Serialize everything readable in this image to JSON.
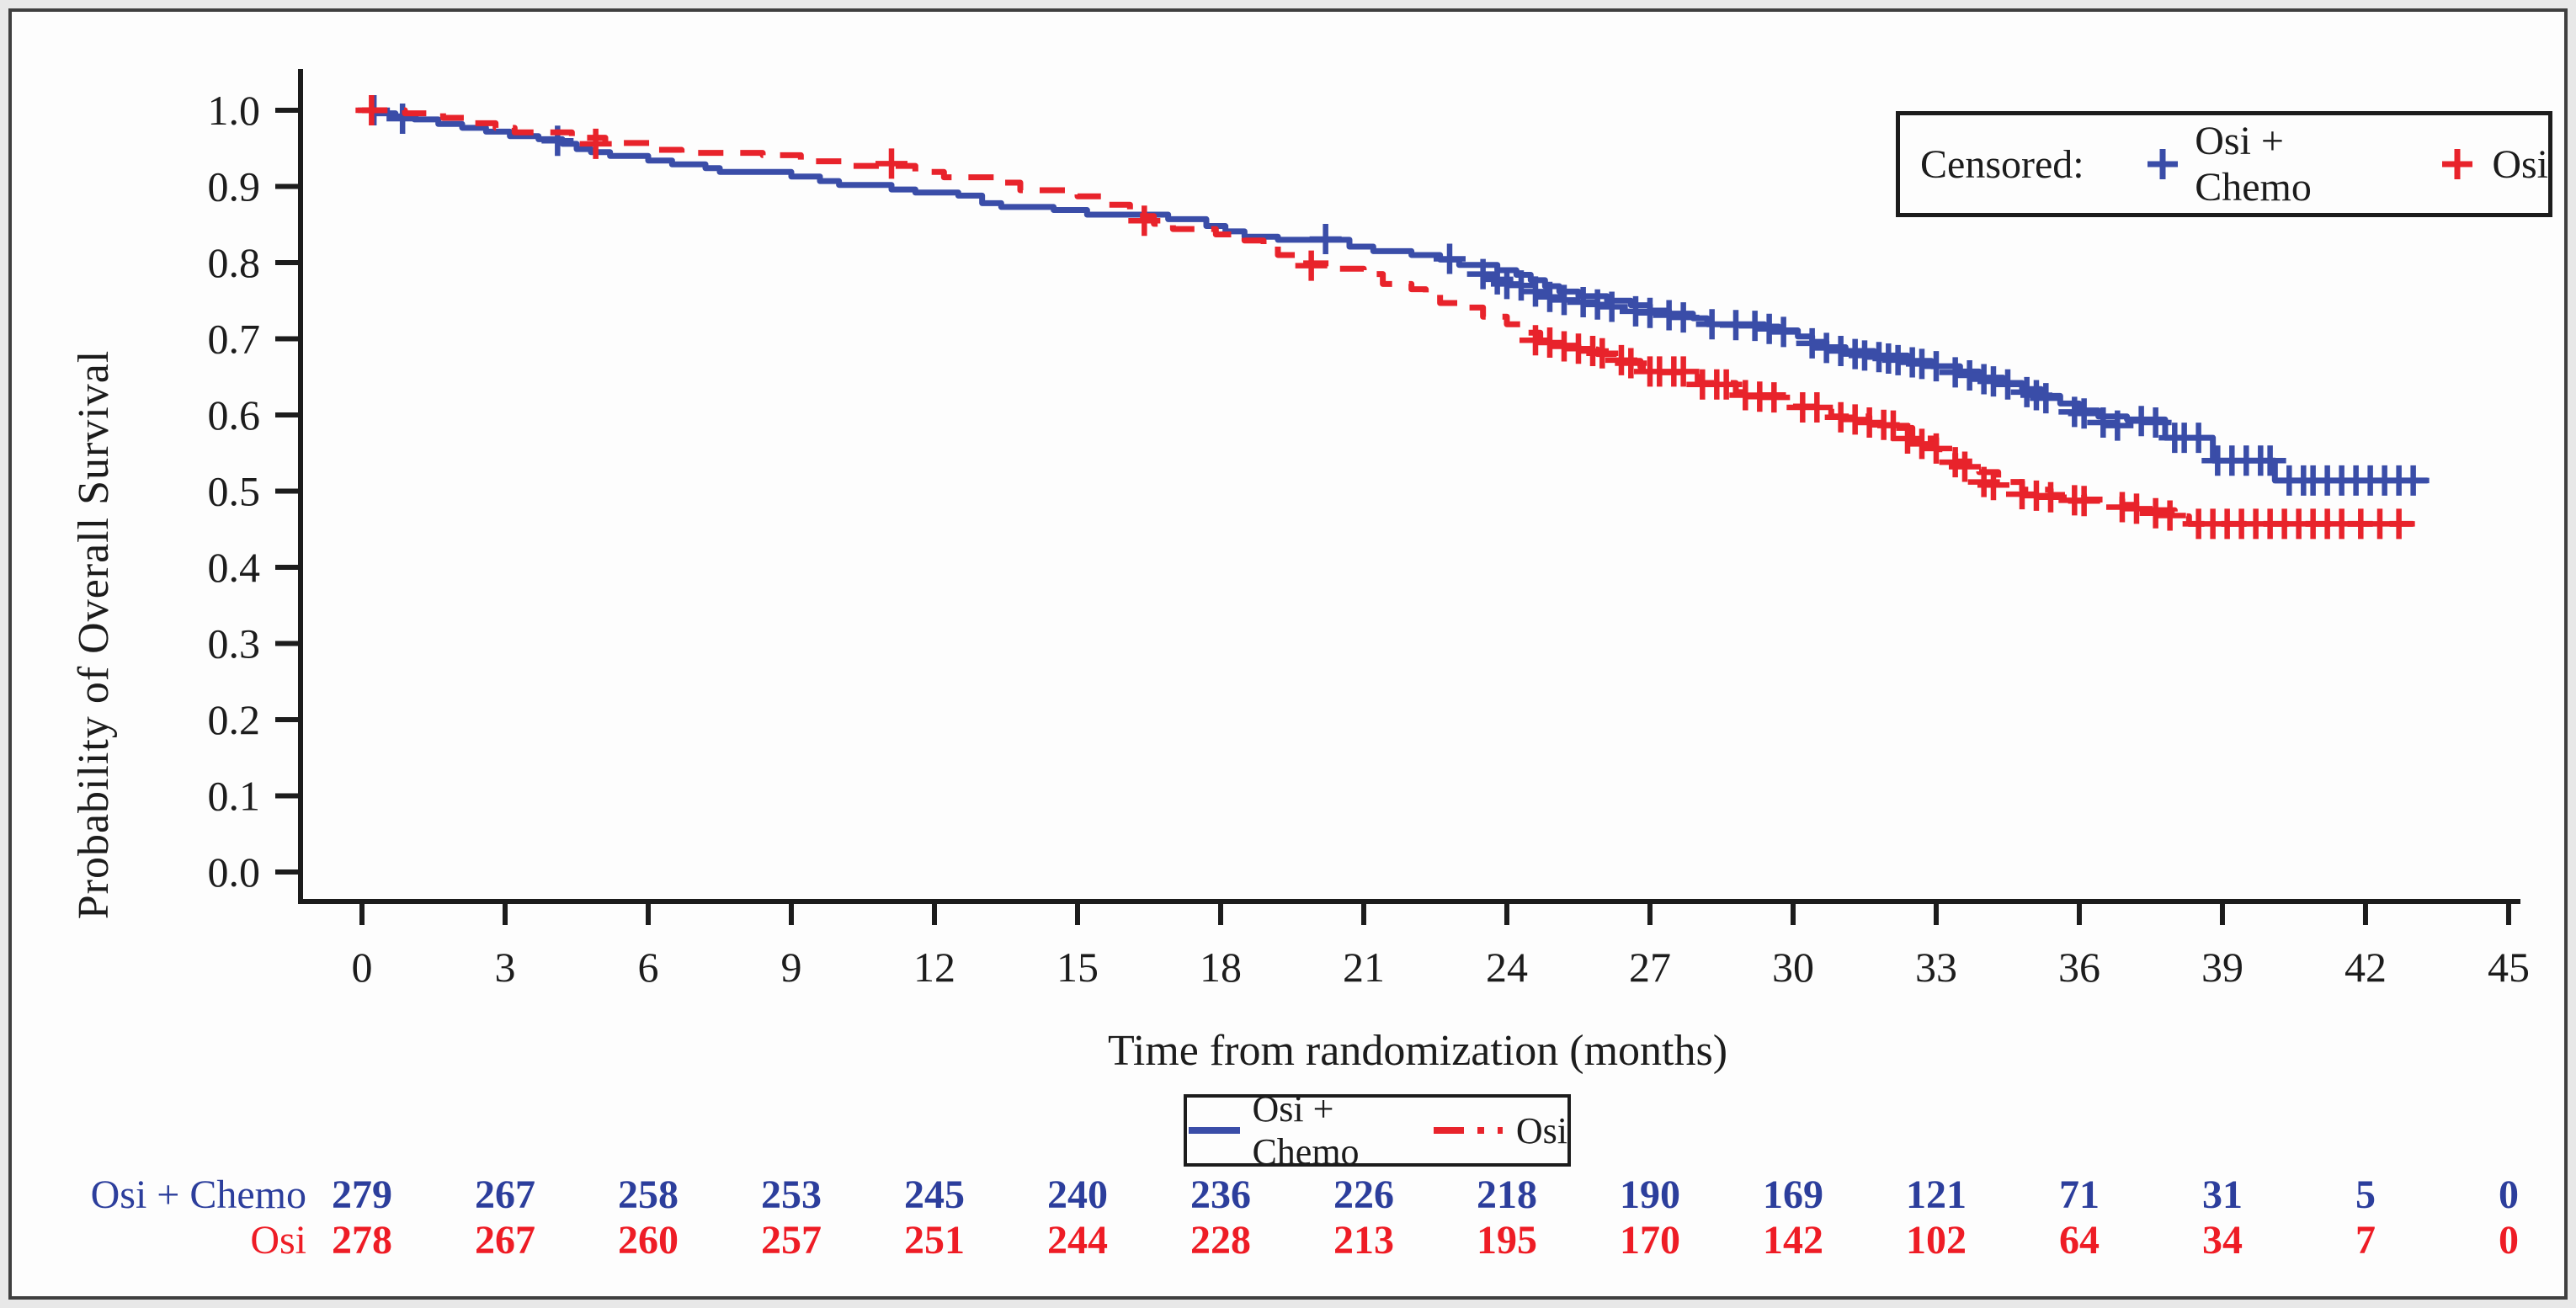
{
  "figure": {
    "background": "#fdfdfd",
    "border_color": "#3f3f3f"
  },
  "chart_data": {
    "type": "line",
    "subtype": "kaplan-meier-step",
    "title": "",
    "xlabel": "Time from randomization (months)",
    "ylabel": "Probability of Overall Survival",
    "xlim": [
      0,
      45
    ],
    "ylim": [
      0.0,
      1.0
    ],
    "grid": false,
    "x_ticks": [
      0,
      3,
      6,
      9,
      12,
      15,
      18,
      21,
      24,
      27,
      30,
      33,
      36,
      39,
      42,
      45
    ],
    "y_tick_labels": [
      "1.0",
      "0.9",
      "0.8",
      "0.7",
      "0.6",
      "0.5",
      "0.4",
      "0.3",
      "0.2",
      "0.1",
      "0.0"
    ],
    "axis_color": "#1c1c1c",
    "series": [
      {
        "name": "Osi + Chemo",
        "color": "#3a4da8",
        "style": "solid",
        "end_month": 43.3,
        "steps": [
          [
            0,
            1.0
          ],
          [
            0.3,
            0.996
          ],
          [
            0.7,
            0.992
          ],
          [
            1.1,
            0.988
          ],
          [
            1.6,
            0.982
          ],
          [
            2.1,
            0.977
          ],
          [
            2.6,
            0.972
          ],
          [
            3.1,
            0.966
          ],
          [
            3.7,
            0.962
          ],
          [
            4.2,
            0.956
          ],
          [
            4.5,
            0.949
          ],
          [
            4.8,
            0.945
          ],
          [
            5.2,
            0.94
          ],
          [
            6.0,
            0.934
          ],
          [
            6.5,
            0.929
          ],
          [
            7.2,
            0.924
          ],
          [
            7.5,
            0.919
          ],
          [
            9.0,
            0.913
          ],
          [
            9.6,
            0.907
          ],
          [
            10.0,
            0.902
          ],
          [
            11.1,
            0.896
          ],
          [
            11.6,
            0.892
          ],
          [
            12.5,
            0.888
          ],
          [
            13.0,
            0.878
          ],
          [
            13.4,
            0.873
          ],
          [
            14.5,
            0.869
          ],
          [
            15.2,
            0.863
          ],
          [
            16.9,
            0.857
          ],
          [
            17.7,
            0.848
          ],
          [
            18.1,
            0.841
          ],
          [
            18.5,
            0.834
          ],
          [
            19.2,
            0.83
          ],
          [
            20.7,
            0.821
          ],
          [
            21.2,
            0.815
          ],
          [
            22.0,
            0.81
          ],
          [
            22.6,
            0.804
          ],
          [
            23.0,
            0.797
          ],
          [
            23.8,
            0.79
          ],
          [
            24.2,
            0.784
          ],
          [
            24.5,
            0.777
          ],
          [
            24.8,
            0.769
          ],
          [
            25.1,
            0.762
          ],
          [
            25.5,
            0.756
          ],
          [
            26.1,
            0.75
          ],
          [
            26.6,
            0.744
          ],
          [
            27.0,
            0.737
          ],
          [
            27.4,
            0.733
          ],
          [
            27.9,
            0.727
          ],
          [
            28.2,
            0.719
          ],
          [
            29.4,
            0.716
          ],
          [
            29.7,
            0.711
          ],
          [
            30.1,
            0.703
          ],
          [
            30.4,
            0.696
          ],
          [
            30.7,
            0.689
          ],
          [
            31.1,
            0.684
          ],
          [
            31.7,
            0.678
          ],
          [
            32.4,
            0.671
          ],
          [
            32.9,
            0.664
          ],
          [
            33.5,
            0.657
          ],
          [
            33.9,
            0.649
          ],
          [
            34.4,
            0.642
          ],
          [
            34.8,
            0.634
          ],
          [
            35.2,
            0.625
          ],
          [
            35.6,
            0.615
          ],
          [
            36.0,
            0.606
          ],
          [
            36.4,
            0.598
          ],
          [
            37.0,
            0.594
          ],
          [
            37.8,
            0.57
          ],
          [
            38.8,
            0.54
          ],
          [
            40.1,
            0.514
          ]
        ],
        "censors": [
          [
            0.25,
            1.0
          ],
          [
            0.85,
            0.989
          ],
          [
            4.1,
            0.96
          ],
          [
            20.2,
            0.831
          ],
          [
            22.8,
            0.805
          ],
          [
            23.5,
            0.785
          ],
          [
            23.8,
            0.778
          ],
          [
            24.0,
            0.772
          ],
          [
            24.3,
            0.77
          ],
          [
            24.6,
            0.762
          ],
          [
            24.9,
            0.755
          ],
          [
            25.2,
            0.751
          ],
          [
            25.6,
            0.748
          ],
          [
            25.9,
            0.745
          ],
          [
            26.2,
            0.742
          ],
          [
            26.7,
            0.736
          ],
          [
            27.0,
            0.734
          ],
          [
            27.4,
            0.731
          ],
          [
            27.7,
            0.728
          ],
          [
            28.3,
            0.719
          ],
          [
            28.8,
            0.718
          ],
          [
            29.2,
            0.717
          ],
          [
            29.5,
            0.713
          ],
          [
            29.8,
            0.709
          ],
          [
            30.4,
            0.694
          ],
          [
            30.7,
            0.688
          ],
          [
            31.0,
            0.684
          ],
          [
            31.3,
            0.68
          ],
          [
            31.5,
            0.678
          ],
          [
            31.8,
            0.676
          ],
          [
            32.0,
            0.674
          ],
          [
            32.2,
            0.672
          ],
          [
            32.5,
            0.669
          ],
          [
            32.7,
            0.667
          ],
          [
            33.0,
            0.664
          ],
          [
            33.4,
            0.656
          ],
          [
            33.7,
            0.652
          ],
          [
            34.0,
            0.647
          ],
          [
            34.2,
            0.644
          ],
          [
            34.5,
            0.64
          ],
          [
            34.9,
            0.63
          ],
          [
            35.1,
            0.626
          ],
          [
            35.3,
            0.622
          ],
          [
            35.9,
            0.604
          ],
          [
            36.1,
            0.602
          ],
          [
            36.5,
            0.59
          ],
          [
            36.8,
            0.586
          ],
          [
            37.3,
            0.592
          ],
          [
            37.6,
            0.59
          ],
          [
            38.0,
            0.57
          ],
          [
            38.2,
            0.57
          ],
          [
            38.5,
            0.57
          ],
          [
            38.9,
            0.54
          ],
          [
            39.2,
            0.54
          ],
          [
            39.5,
            0.54
          ],
          [
            39.8,
            0.54
          ],
          [
            40.0,
            0.54
          ],
          [
            40.4,
            0.514
          ],
          [
            40.7,
            0.514
          ],
          [
            40.9,
            0.514
          ],
          [
            41.2,
            0.514
          ],
          [
            41.5,
            0.514
          ],
          [
            41.8,
            0.514
          ],
          [
            42.1,
            0.514
          ],
          [
            42.4,
            0.514
          ],
          [
            42.7,
            0.514
          ],
          [
            43.0,
            0.514
          ]
        ]
      },
      {
        "name": "Osi",
        "color": "#e8232b",
        "style": "dashed",
        "end_month": 43.0,
        "steps": [
          [
            0,
            1.0
          ],
          [
            0.9,
            0.996
          ],
          [
            1.7,
            0.99
          ],
          [
            2.3,
            0.983
          ],
          [
            2.8,
            0.977
          ],
          [
            3.2,
            0.971
          ],
          [
            4.4,
            0.964
          ],
          [
            5.1,
            0.957
          ],
          [
            6.1,
            0.948
          ],
          [
            6.7,
            0.944
          ],
          [
            8.4,
            0.941
          ],
          [
            9.2,
            0.933
          ],
          [
            10.3,
            0.927
          ],
          [
            11.6,
            0.919
          ],
          [
            12.2,
            0.912
          ],
          [
            13.4,
            0.905
          ],
          [
            13.8,
            0.895
          ],
          [
            15.0,
            0.887
          ],
          [
            15.6,
            0.876
          ],
          [
            16.1,
            0.861
          ],
          [
            16.6,
            0.851
          ],
          [
            17.0,
            0.844
          ],
          [
            17.9,
            0.837
          ],
          [
            18.5,
            0.829
          ],
          [
            18.9,
            0.822
          ],
          [
            19.2,
            0.81
          ],
          [
            19.7,
            0.799
          ],
          [
            20.4,
            0.792
          ],
          [
            21.0,
            0.785
          ],
          [
            21.4,
            0.772
          ],
          [
            22.0,
            0.765
          ],
          [
            22.3,
            0.758
          ],
          [
            22.6,
            0.747
          ],
          [
            23.2,
            0.741
          ],
          [
            23.5,
            0.729
          ],
          [
            24.0,
            0.719
          ],
          [
            24.4,
            0.708
          ],
          [
            24.7,
            0.697
          ],
          [
            25.1,
            0.691
          ],
          [
            25.5,
            0.686
          ],
          [
            25.9,
            0.68
          ],
          [
            26.4,
            0.671
          ],
          [
            26.8,
            0.663
          ],
          [
            27.1,
            0.656
          ],
          [
            28.0,
            0.642
          ],
          [
            28.8,
            0.63
          ],
          [
            29.1,
            0.626
          ],
          [
            30.0,
            0.611
          ],
          [
            30.8,
            0.598
          ],
          [
            31.6,
            0.589
          ],
          [
            31.9,
            0.583
          ],
          [
            32.5,
            0.569
          ],
          [
            33.0,
            0.555
          ],
          [
            33.4,
            0.539
          ],
          [
            33.9,
            0.525
          ],
          [
            34.3,
            0.512
          ],
          [
            34.8,
            0.502
          ],
          [
            35.4,
            0.495
          ],
          [
            36.1,
            0.489
          ],
          [
            36.9,
            0.482
          ],
          [
            37.5,
            0.475
          ],
          [
            38.0,
            0.467
          ],
          [
            38.3,
            0.457
          ]
        ],
        "censors": [
          [
            0.2,
            1.0
          ],
          [
            4.9,
            0.956
          ],
          [
            11.1,
            0.93
          ],
          [
            16.4,
            0.855
          ],
          [
            19.9,
            0.796
          ],
          [
            24.6,
            0.698
          ],
          [
            24.9,
            0.695
          ],
          [
            25.2,
            0.69
          ],
          [
            25.5,
            0.687
          ],
          [
            25.8,
            0.684
          ],
          [
            26.0,
            0.681
          ],
          [
            26.4,
            0.672
          ],
          [
            26.6,
            0.668
          ],
          [
            27.0,
            0.657
          ],
          [
            27.2,
            0.657
          ],
          [
            27.5,
            0.657
          ],
          [
            27.7,
            0.657
          ],
          [
            28.1,
            0.64
          ],
          [
            28.4,
            0.64
          ],
          [
            28.6,
            0.64
          ],
          [
            29.0,
            0.626
          ],
          [
            29.3,
            0.624
          ],
          [
            29.6,
            0.623
          ],
          [
            30.2,
            0.61
          ],
          [
            30.5,
            0.61
          ],
          [
            31.0,
            0.597
          ],
          [
            31.3,
            0.594
          ],
          [
            31.6,
            0.59
          ],
          [
            31.9,
            0.587
          ],
          [
            32.1,
            0.586
          ],
          [
            32.4,
            0.569
          ],
          [
            32.7,
            0.562
          ],
          [
            33.0,
            0.556
          ],
          [
            33.4,
            0.538
          ],
          [
            33.6,
            0.532
          ],
          [
            34.0,
            0.512
          ],
          [
            34.2,
            0.508
          ],
          [
            34.8,
            0.496
          ],
          [
            35.1,
            0.494
          ],
          [
            35.4,
            0.492
          ],
          [
            35.9,
            0.488
          ],
          [
            36.1,
            0.487
          ],
          [
            36.9,
            0.479
          ],
          [
            37.2,
            0.477
          ],
          [
            37.6,
            0.471
          ],
          [
            37.9,
            0.468
          ],
          [
            38.5,
            0.457
          ],
          [
            38.8,
            0.457
          ],
          [
            39.1,
            0.457
          ],
          [
            39.4,
            0.457
          ],
          [
            39.7,
            0.457
          ],
          [
            40.0,
            0.457
          ],
          [
            40.3,
            0.457
          ],
          [
            40.6,
            0.457
          ],
          [
            40.9,
            0.457
          ],
          [
            41.2,
            0.457
          ],
          [
            41.5,
            0.457
          ],
          [
            41.9,
            0.457
          ],
          [
            42.3,
            0.457
          ],
          [
            42.7,
            0.457
          ]
        ]
      }
    ]
  },
  "censored_legend": {
    "label": "Censored:",
    "items": [
      {
        "name": "Osi + Chemo",
        "color": "#3a4da8"
      },
      {
        "name": "Osi",
        "color": "#e8232b"
      }
    ]
  },
  "line_legend": {
    "items": [
      {
        "name": "Osi + Chemo",
        "color": "#3a4da8",
        "style": "solid"
      },
      {
        "name": "Osi",
        "color": "#e8232b",
        "style": "dashed"
      }
    ]
  },
  "risk_table": {
    "rows": [
      {
        "label": "Osi + Chemo",
        "color": "#2c3e9c",
        "values": [
          279,
          267,
          258,
          253,
          245,
          240,
          236,
          226,
          218,
          190,
          169,
          121,
          71,
          31,
          5,
          0
        ]
      },
      {
        "label": "Osi",
        "color": "#ee1c25",
        "values": [
          278,
          267,
          260,
          257,
          251,
          244,
          228,
          213,
          195,
          170,
          142,
          102,
          64,
          34,
          7,
          0
        ]
      }
    ]
  }
}
